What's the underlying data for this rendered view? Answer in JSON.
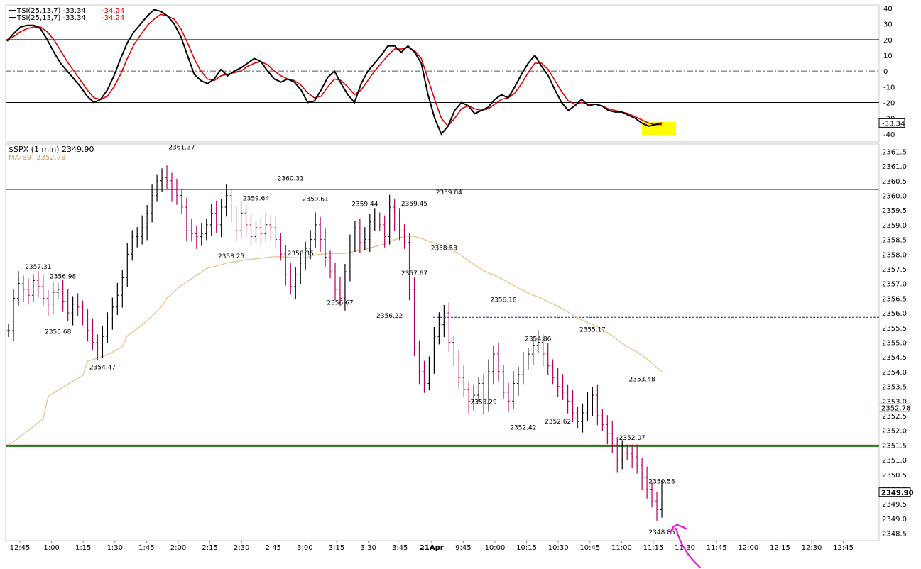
{
  "colors": {
    "price_up": "#000000",
    "price_down": "#b0005a",
    "ma": "#e8c08a",
    "tsi_line": "#000000",
    "tsi_signal": "#e00000",
    "red_hline": "#cc0000",
    "pink_hline": "#f08080",
    "green_line": "#2e8b2e",
    "blue_dotted": "#1a1aa0",
    "highlight": "#ffff00",
    "arrow": "#e61ce0"
  },
  "chart_data": [
    {
      "type": "line",
      "legend": [
        {
          "text": "TSI(25,13,7) -33.34, ",
          "value2": "-34.24"
        },
        {
          "text": "TSI(25,13,7) -33.34, ",
          "value2": "-34.24"
        }
      ],
      "ylim": [
        -45,
        42
      ],
      "yticks": [
        40,
        30,
        20,
        10,
        0,
        -10,
        -20,
        -30,
        -40
      ],
      "last_value_label": "-33.34",
      "hlines": [
        20,
        -20
      ],
      "zero_line": 0,
      "tsi": [
        19,
        24,
        28,
        29,
        29,
        27,
        20,
        12,
        5,
        0,
        -5,
        -10,
        -16,
        -20,
        -18,
        -12,
        -3,
        8,
        18,
        25,
        30,
        35,
        39,
        38,
        35,
        30,
        22,
        10,
        -2,
        -6,
        -8,
        -5,
        1,
        -3,
        0,
        2,
        5,
        8,
        6,
        0,
        -5,
        -7,
        -5,
        -7,
        -12,
        -20,
        -19,
        -12,
        -4,
        0,
        -8,
        -15,
        -20,
        -8,
        0,
        5,
        10,
        16,
        16,
        12,
        16,
        12,
        5,
        -15,
        -30,
        -40,
        -35,
        -25,
        -20,
        -22,
        -27,
        -25,
        -23,
        -18,
        -15,
        -17,
        -10,
        -2,
        5,
        10,
        3,
        -3,
        -12,
        -20,
        -25,
        -22,
        -18,
        -22,
        -21,
        -22,
        -25,
        -26,
        -26,
        -28,
        -30,
        -33,
        -35,
        -34,
        -33
      ],
      "signal": [
        20,
        22,
        25,
        27,
        28,
        28,
        25,
        20,
        13,
        6,
        0,
        -6,
        -12,
        -17,
        -18,
        -16,
        -10,
        -2,
        8,
        17,
        23,
        29,
        33,
        36,
        35,
        33,
        27,
        18,
        8,
        0,
        -5,
        -6,
        -3,
        -2,
        -1,
        0,
        3,
        5,
        6,
        4,
        0,
        -3,
        -5,
        -6,
        -9,
        -14,
        -17,
        -16,
        -10,
        -5,
        -6,
        -10,
        -15,
        -12,
        -6,
        0,
        5,
        10,
        14,
        14,
        15,
        13,
        8,
        -5,
        -18,
        -30,
        -35,
        -30,
        -24,
        -22,
        -24,
        -25,
        -24,
        -21,
        -18,
        -17,
        -14,
        -8,
        -1,
        5,
        5,
        1,
        -6,
        -13,
        -19,
        -21,
        -20,
        -21,
        -21,
        -22,
        -24,
        -25,
        -26,
        -27,
        -29,
        -31,
        -33,
        -34,
        -34
      ]
    },
    {
      "type": "bar",
      "title": "$SPX (1 min) 2349.90",
      "ma_legend": "MA(89) 2352.78",
      "ylim": [
        2348.25,
        2361.75
      ],
      "yticks": [
        2361.5,
        2361.0,
        2360.5,
        2360.0,
        2359.5,
        2359.0,
        2358.5,
        2358.0,
        2357.5,
        2357.0,
        2356.5,
        2356.0,
        2355.5,
        2355.0,
        2354.5,
        2354.0,
        2353.5,
        2353.0,
        2352.5,
        2352.0,
        2351.5,
        2351.0,
        2350.5,
        2350.0,
        2349.5,
        2349.0,
        2348.5
      ],
      "last_price_label": "2349.90",
      "ma_label": "2352.78",
      "x_labels": [
        "12:45",
        "1:00",
        "1:15",
        "1:30",
        "1:45",
        "2:00",
        "2:15",
        "2:30",
        "2:45",
        "3:00",
        "3:15",
        "3:30",
        "3:45",
        "21Apr",
        "9:45",
        "10:00",
        "10:15",
        "10:30",
        "10:45",
        "11:00",
        "11:15",
        "11:30",
        "11:45",
        "12:00",
        "12:15",
        "12:30",
        "12:45"
      ],
      "hlines": {
        "red": [
          2360.2,
          2351.5
        ],
        "pink": 2359.3,
        "green": 2351.45,
        "blue_dotted": 2355.85
      },
      "close": [
        2355.4,
        2356.5,
        2357.0,
        2356.8,
        2356.6,
        2357.1,
        2356.9,
        2356.5,
        2356.3,
        2356.7,
        2356.8,
        2356.4,
        2356.0,
        2356.3,
        2356.2,
        2355.8,
        2355.4,
        2355.0,
        2354.8,
        2355.2,
        2355.8,
        2356.2,
        2356.6,
        2357.2,
        2358.0,
        2358.6,
        2358.6,
        2358.9,
        2359.4,
        2360.0,
        2360.5,
        2360.6,
        2360.5,
        2360.2,
        2360.0,
        2359.6,
        2358.8,
        2358.7,
        2358.6,
        2358.7,
        2359.0,
        2359.4,
        2359.0,
        2359.6,
        2360.0,
        2359.3,
        2358.8,
        2359.4,
        2359.0,
        2358.6,
        2358.9,
        2358.7,
        2359.0,
        2358.9,
        2358.5,
        2358.0,
        2357.3,
        2356.9,
        2357.3,
        2357.7,
        2358.2,
        2358.5,
        2359.0,
        2358.5,
        2357.9,
        2357.4,
        2356.8,
        2356.5,
        2357.4,
        2358.3,
        2358.9,
        2358.4,
        2358.5,
        2359.1,
        2359.2,
        2359.0,
        2358.6,
        2359.6,
        2359.2,
        2358.8,
        2358.4,
        2356.8,
        2354.8,
        2354.0,
        2353.6,
        2354.3,
        2355.2,
        2355.6,
        2356.0,
        2355.0,
        2354.4,
        2353.8,
        2353.4,
        2353.0,
        2353.2,
        2353.6,
        2352.9,
        2354.0,
        2354.6,
        2354.0,
        2353.3,
        2353.0,
        2353.6,
        2353.9,
        2354.3,
        2354.6,
        2354.9,
        2355.0,
        2354.6,
        2354.2,
        2353.8,
        2353.5,
        2353.3,
        2353.0,
        2352.6,
        2352.3,
        2352.6,
        2352.9,
        2353.2,
        2352.5,
        2352.2,
        2351.9,
        2351.5,
        2351.0,
        2351.3,
        2351.2,
        2351.1,
        2350.8,
        2350.4,
        2350.0,
        2349.6,
        2349.3,
        2349.9
      ]
    }
  ],
  "annotations": {
    "high_low": [
      {
        "text": "2357.31",
        "i": 6,
        "pos": "above"
      },
      {
        "text": "2356.98",
        "i": 11,
        "pos": "above"
      },
      {
        "text": "2355.68",
        "i": 10,
        "pos": "below"
      },
      {
        "text": "2354.47",
        "i": 19,
        "pos": "below"
      },
      {
        "text": "2361.37",
        "i": 35,
        "pos": "above"
      },
      {
        "text": "2358.25",
        "i": 45,
        "pos": "below"
      },
      {
        "text": "2359.64",
        "i": 50,
        "pos": "above"
      },
      {
        "text": "2360.31",
        "i": 57,
        "pos": "above"
      },
      {
        "text": "2358.35",
        "i": 59,
        "pos": "below"
      },
      {
        "text": "2359.61",
        "i": 62,
        "pos": "above"
      },
      {
        "text": "2356.67",
        "i": 67,
        "pos": "below"
      },
      {
        "text": "2359.44",
        "i": 72,
        "pos": "above"
      },
      {
        "text": "2356.22",
        "i": 77,
        "pos": "below"
      },
      {
        "text": "2359.45",
        "i": 82,
        "pos": "above"
      },
      {
        "text": "2357.67",
        "i": 82,
        "pos": "below"
      },
      {
        "text": "2359.84",
        "i": 89,
        "pos": "above"
      },
      {
        "text": "2358.53",
        "i": 88,
        "pos": "below"
      },
      {
        "text": "2356.18",
        "i": 100,
        "pos": "above"
      },
      {
        "text": "2353.29",
        "i": 96,
        "pos": "below"
      },
      {
        "text": "2354.86",
        "i": 107,
        "pos": "above"
      },
      {
        "text": "2352.42",
        "i": 104,
        "pos": "below"
      },
      {
        "text": "2352.62",
        "i": 111,
        "pos": "below"
      },
      {
        "text": "2355.17",
        "i": 118,
        "pos": "above"
      },
      {
        "text": "2353.48",
        "i": 128,
        "pos": "above"
      },
      {
        "text": "2352.07",
        "i": 126,
        "pos": "below"
      },
      {
        "text": "2350.58",
        "i": 133,
        "pos": "below"
      },
      {
        "text": "2348.85",
        "i": 141,
        "pos": "below"
      }
    ]
  }
}
